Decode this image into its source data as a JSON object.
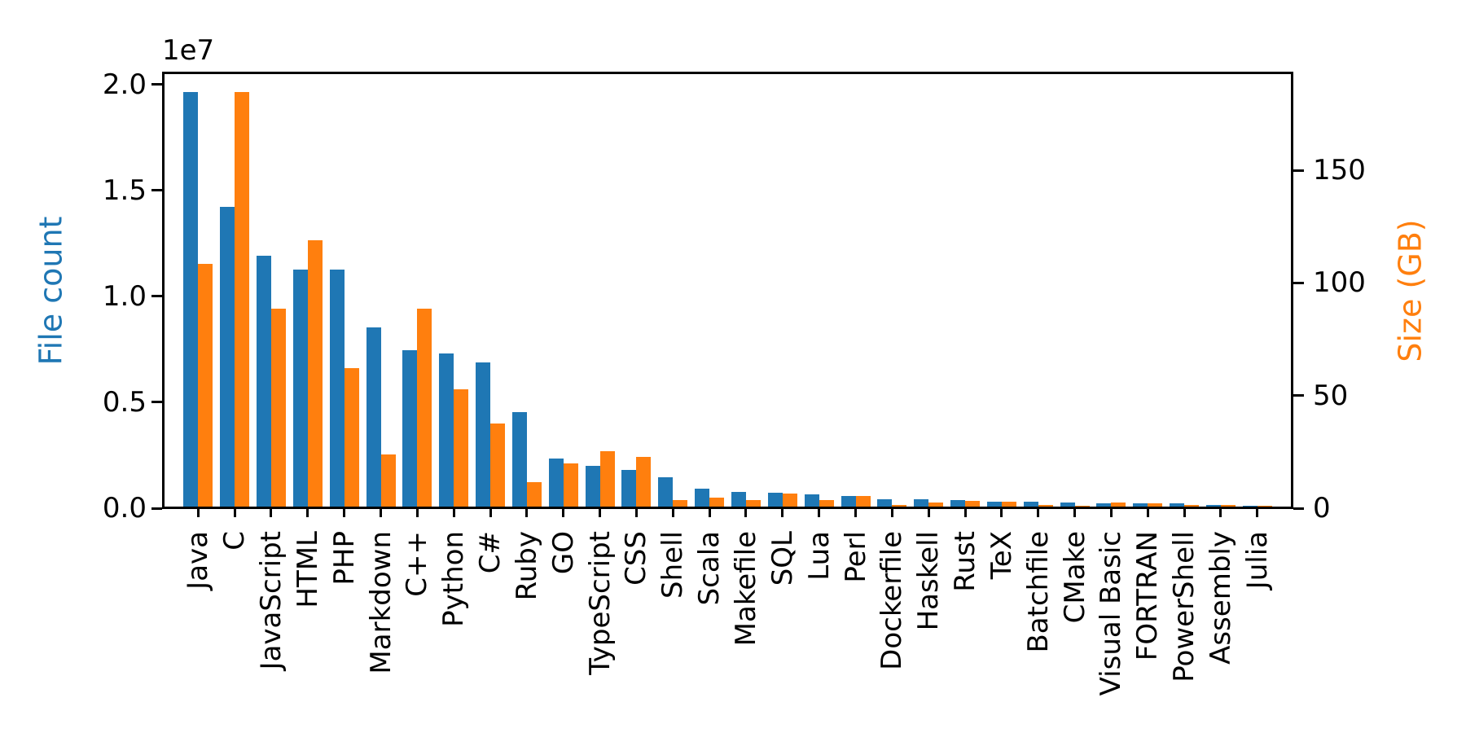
{
  "figure": {
    "background": "#ffffff",
    "text_color": "#000000"
  },
  "chart_data": {
    "type": "bar",
    "title": "",
    "grid": false,
    "legend": "none",
    "categories": [
      "Java",
      "C",
      "JavaScript",
      "HTML",
      "PHP",
      "Markdown",
      "C++",
      "Python",
      "C#",
      "Ruby",
      "GO",
      "TypeScript",
      "CSS",
      "Shell",
      "Scala",
      "Makefile",
      "SQL",
      "Lua",
      "Perl",
      "Dockerfile",
      "Haskell",
      "Rust",
      "TeX",
      "Batchfile",
      "CMake",
      "Visual Basic",
      "FORTRAN",
      "PowerShell",
      "Assembly",
      "Julia"
    ],
    "series": [
      {
        "name": "File count",
        "axis": "left",
        "color": "#1f77b4",
        "values": [
          19548190,
          14143113,
          11839883,
          11178557,
          11177610,
          8464626,
          7380520,
          7226626,
          6811652,
          4473331,
          2265436,
          1940406,
          1734406,
          1385648,
          835755,
          679430,
          656671,
          578554,
          497949,
          366505,
          340623,
          322431,
          251015,
          236945,
          175282,
          155652,
          142038,
          136846,
          82905,
          58317
        ]
      },
      {
        "name": "Size (GB)",
        "axis": "right",
        "color": "#ff7f0e",
        "values": [
          107.7,
          183.83,
          87.82,
          118.12,
          61.41,
          23.09,
          87.73,
          52.03,
          36.83,
          10.95,
          19.28,
          24.59,
          22.07,
          3.01,
          3.87,
          2.92,
          5.67,
          2.81,
          4.7,
          0.71,
          1.85,
          2.68,
          2.15,
          0.7,
          0.54,
          1.91,
          1.62,
          0.69,
          0.78,
          0.29
        ]
      }
    ],
    "left_axis": {
      "label": "File count",
      "color": "#1f77b4",
      "offset_label": "1e7",
      "min": 0,
      "max": 20525600,
      "ticks": [
        0,
        5000000,
        10000000,
        15000000,
        20000000
      ],
      "tick_labels": [
        "0.0",
        "0.5",
        "1.0",
        "1.5",
        "2.0"
      ]
    },
    "right_axis": {
      "label": "Size (GB)",
      "color": "#ff7f0e",
      "min": 0,
      "max": 193.02,
      "ticks": [
        0,
        50,
        100,
        150
      ],
      "tick_labels": [
        "0",
        "50",
        "100",
        "150"
      ]
    }
  }
}
